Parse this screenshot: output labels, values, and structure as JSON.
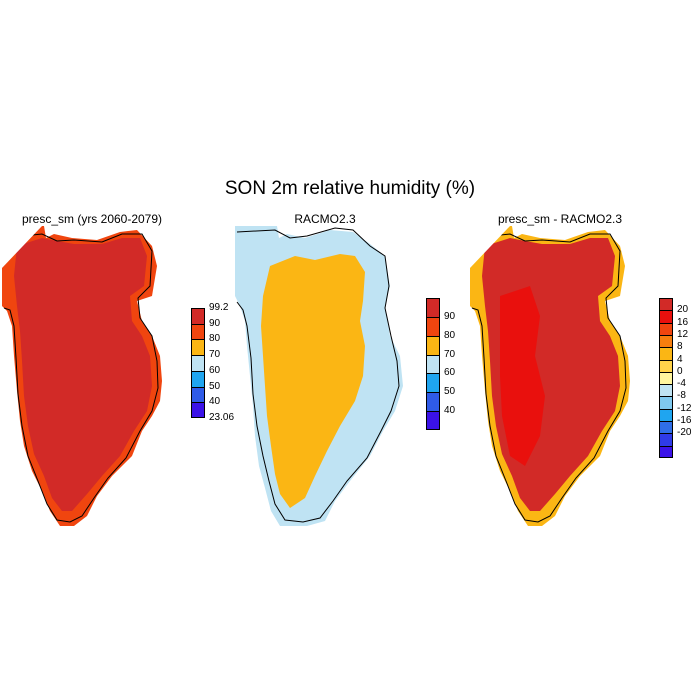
{
  "figure": {
    "title": "SON 2m relative humidity (%)"
  },
  "panels": [
    {
      "title": "presc_sm (yrs 2060-2079)",
      "fill_color": "#d22a27",
      "margin_color": "#f0450f",
      "colorbar": {
        "colors": [
          "#3b12e8",
          "#2f5be8",
          "#1fa5f0",
          "#bfe3f3",
          "#fbb614",
          "#f0450f",
          "#d22a27"
        ],
        "labels": [
          "99.2",
          "90",
          "80",
          "70",
          "60",
          "50",
          "40",
          "23.06"
        ]
      }
    },
    {
      "title": "RACMO2.3",
      "fill_color": "#fbb614",
      "margin_color": "#bfe3f3",
      "colorbar": {
        "colors": [
          "#3b12e8",
          "#2f5be8",
          "#1fa5f0",
          "#bfe3f3",
          "#fbb614",
          "#f0450f",
          "#d22a27"
        ],
        "labels": [
          "90",
          "80",
          "70",
          "60",
          "50",
          "40"
        ]
      }
    },
    {
      "title": "presc_sm - RACMO2.3",
      "fill_color": "#d22a27",
      "margin_color": "#fbb614",
      "colorbar": {
        "colors": [
          "#3b12e8",
          "#2f3be8",
          "#2f6ee8",
          "#1fa5f0",
          "#7fc9ef",
          "#bfe3f3",
          "#fff59e",
          "#ffd34a",
          "#fbb614",
          "#f67e0e",
          "#f0450f",
          "#e9100d",
          "#d22a27"
        ],
        "labels": [
          "20",
          "16",
          "12",
          "8",
          "4",
          "0",
          "-4",
          "-8",
          "-12",
          "-16",
          "-20"
        ]
      }
    }
  ]
}
